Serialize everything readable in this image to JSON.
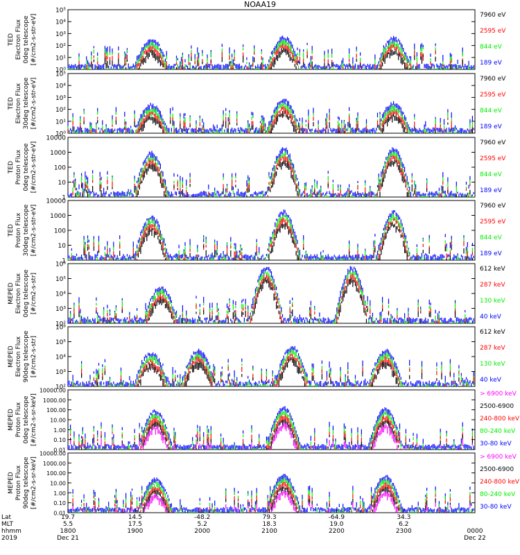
{
  "title": "NOAA19",
  "colors": {
    "black": "#000000",
    "red": "#ff0000",
    "green": "#00ee00",
    "blue": "#0000ff",
    "magenta": "#ff00ff"
  },
  "chart_data": [
    {
      "type": "scatter",
      "ylabel": [
        "TED",
        "Electron Flux",
        "0deg telescope",
        "[#/cm2-s-str-eV]"
      ],
      "yscale": "log",
      "ylim": [
        1,
        100000
      ],
      "ytick_labels": [
        "10⁰",
        "10¹",
        "10²",
        "10³",
        "10⁴",
        "10⁵"
      ],
      "legend": [
        {
          "label": "7960 eV",
          "color": "#000000"
        },
        {
          "label": "2595 eV",
          "color": "#ff0000"
        },
        {
          "label": "844 eV",
          "color": "#00ee00"
        },
        {
          "label": "189 eV",
          "color": "#0000ff"
        }
      ],
      "envelope": [
        {
          "t": 0.205,
          "peak": 400
        },
        {
          "t": 0.53,
          "peak": 600
        },
        {
          "t": 0.8,
          "peak": 500
        }
      ]
    },
    {
      "type": "scatter",
      "ylabel": [
        "TED",
        "Electron Flux",
        "30deg telescope",
        "[#/cm2-s-str-eV]"
      ],
      "yscale": "log",
      "ylim": [
        1,
        100000
      ],
      "ytick_labels": [
        "10⁰",
        "10¹",
        "10²",
        "10³",
        "10⁴",
        "10⁵"
      ],
      "legend": [
        {
          "label": "7960 eV",
          "color": "#000000"
        },
        {
          "label": "2595 eV",
          "color": "#ff0000"
        },
        {
          "label": "844 eV",
          "color": "#00ee00"
        },
        {
          "label": "189 eV",
          "color": "#0000ff"
        }
      ],
      "envelope": [
        {
          "t": 0.205,
          "peak": 300
        },
        {
          "t": 0.53,
          "peak": 700
        },
        {
          "t": 0.8,
          "peak": 400
        }
      ]
    },
    {
      "type": "scatter",
      "ylabel": [
        "TED",
        "Proton Flux",
        "0deg telescope",
        "[#/cm2-s-str-eV]"
      ],
      "yscale": "log",
      "ylim": [
        1,
        10000
      ],
      "ytick_labels": [
        "1",
        "10",
        "100",
        "1000",
        "10000"
      ],
      "legend": [
        {
          "label": "7960 eV",
          "color": "#000000"
        },
        {
          "label": "2595 eV",
          "color": "#ff0000"
        },
        {
          "label": "844 eV",
          "color": "#00ee00"
        },
        {
          "label": "189 eV",
          "color": "#0000ff"
        }
      ],
      "envelope": [
        {
          "t": 0.205,
          "peak": 1000
        },
        {
          "t": 0.53,
          "peak": 2000
        },
        {
          "t": 0.8,
          "peak": 2000
        }
      ]
    },
    {
      "type": "scatter",
      "ylabel": [
        "TED",
        "Proton Flux",
        "30deg telescope",
        "[#/cm2-s-str-eV]"
      ],
      "yscale": "log",
      "ylim": [
        1,
        10000
      ],
      "ytick_labels": [
        "1",
        "10",
        "100",
        "1000",
        "10000"
      ],
      "legend": [
        {
          "label": "7960 eV",
          "color": "#000000"
        },
        {
          "label": "2595 eV",
          "color": "#ff0000"
        },
        {
          "label": "844 eV",
          "color": "#00ee00"
        },
        {
          "label": "189 eV",
          "color": "#0000ff"
        }
      ],
      "envelope": [
        {
          "t": 0.205,
          "peak": 1000
        },
        {
          "t": 0.53,
          "peak": 2000
        },
        {
          "t": 0.8,
          "peak": 2000
        }
      ]
    },
    {
      "type": "scatter",
      "ylabel": [
        "MEPED",
        "Electron Flux",
        "0deg telescope",
        "[#/cm2-s-str]"
      ],
      "yscale": "log",
      "ylim": [
        100,
        1000000
      ],
      "ytick_labels": [
        "10²",
        "10³",
        "10⁴",
        "10⁵",
        "10⁶"
      ],
      "legend": [
        {
          "label": "612 keV",
          "color": "#000000"
        },
        {
          "label": "287 keV",
          "color": "#ff0000"
        },
        {
          "label": "130 keV",
          "color": "#00ee00"
        },
        {
          "label": "40 keV",
          "color": "#0000ff"
        }
      ],
      "envelope": [
        {
          "t": 0.228,
          "peak": 30000
        },
        {
          "t": 0.487,
          "peak": 600000
        },
        {
          "t": 0.698,
          "peak": 600000
        }
      ]
    },
    {
      "type": "scatter",
      "ylabel": [
        "MEPED",
        "Electron Flux",
        "90deg telescope",
        "[#/cm2-s-str]"
      ],
      "yscale": "log",
      "ylim": [
        100,
        1000000
      ],
      "ytick_labels": [
        "10²",
        "10³",
        "10⁴",
        "10⁵",
        "10⁶"
      ],
      "legend": [
        {
          "label": "612 keV",
          "color": "#000000"
        },
        {
          "label": "287 keV",
          "color": "#ff0000"
        },
        {
          "label": "130 keV",
          "color": "#00ee00"
        },
        {
          "label": "40 keV",
          "color": "#0000ff"
        }
      ],
      "envelope": [
        {
          "t": 0.205,
          "peak": 20000
        },
        {
          "t": 0.32,
          "peak": 30000
        },
        {
          "t": 0.55,
          "peak": 50000
        },
        {
          "t": 0.78,
          "peak": 30000
        }
      ]
    },
    {
      "type": "scatter",
      "ylabel": [
        "MEPED",
        "Proton Flux",
        "0deg telescope",
        "[#/cm2-s-sr-keV]"
      ],
      "yscale": "log",
      "ylim": [
        0.01,
        10000
      ],
      "ytick_labels": [
        "0.01",
        "0.10",
        "1.00",
        "10.00",
        "100.00",
        "1000.00",
        "10000.00"
      ],
      "legend": [
        {
          "label": "> 6900 keV",
          "color": "#ff00ff"
        },
        {
          "label": "2500-6900",
          "color": "#000000"
        },
        {
          "label": "240-800 keV",
          "color": "#ff0000"
        },
        {
          "label": "80-240 keV",
          "color": "#00ee00"
        },
        {
          "label": "30-80 keV",
          "color": "#0000ff"
        }
      ],
      "envelope": [
        {
          "t": 0.215,
          "peak": 100
        },
        {
          "t": 0.53,
          "peak": 200
        },
        {
          "t": 0.78,
          "peak": 150
        }
      ]
    },
    {
      "type": "scatter",
      "ylabel": [
        "MEPED",
        "Proton Flux",
        "90deg telescope",
        "[#/cm2-s-sr-keV]"
      ],
      "yscale": "log",
      "ylim": [
        0.01,
        10000
      ],
      "ytick_labels": [
        "0.01",
        "0.10",
        "1.00",
        "10.00",
        "100.00",
        "1000.00",
        "10000.00"
      ],
      "legend": [
        {
          "label": "> 6900 keV",
          "color": "#ff00ff"
        },
        {
          "label": "2500-6900",
          "color": "#000000"
        },
        {
          "label": "240-800 keV",
          "color": "#ff0000"
        },
        {
          "label": "80-240 keV",
          "color": "#00ee00"
        },
        {
          "label": "30-80 keV",
          "color": "#0000ff"
        }
      ],
      "envelope": [
        {
          "t": 0.215,
          "peak": 30
        },
        {
          "t": 0.53,
          "peak": 80
        },
        {
          "t": 0.78,
          "peak": 60
        }
      ]
    }
  ],
  "x_axis": {
    "row_labels": [
      "Lat",
      "MLT",
      "hhmm",
      "2019"
    ],
    "ticks": [
      {
        "t": 0.0,
        "lat": "19.7",
        "mlt": "5.5",
        "hhmm": "1800",
        "date": "Dec 21"
      },
      {
        "t": 0.165,
        "lat": "14.5",
        "mlt": "17.5",
        "hhmm": "1900",
        "date": ""
      },
      {
        "t": 0.33,
        "lat": "-48.2",
        "mlt": "5.2",
        "hhmm": "2000",
        "date": ""
      },
      {
        "t": 0.495,
        "lat": "79.3",
        "mlt": "18.3",
        "hhmm": "2100",
        "date": ""
      },
      {
        "t": 0.66,
        "lat": "-64.9",
        "mlt": "19.0",
        "hhmm": "2200",
        "date": ""
      },
      {
        "t": 0.825,
        "lat": "34.3",
        "mlt": "6.2",
        "hhmm": "2300",
        "date": ""
      },
      {
        "t": 1.0,
        "lat": "",
        "mlt": "",
        "hhmm": "0000",
        "date": "Dec 22"
      }
    ]
  }
}
